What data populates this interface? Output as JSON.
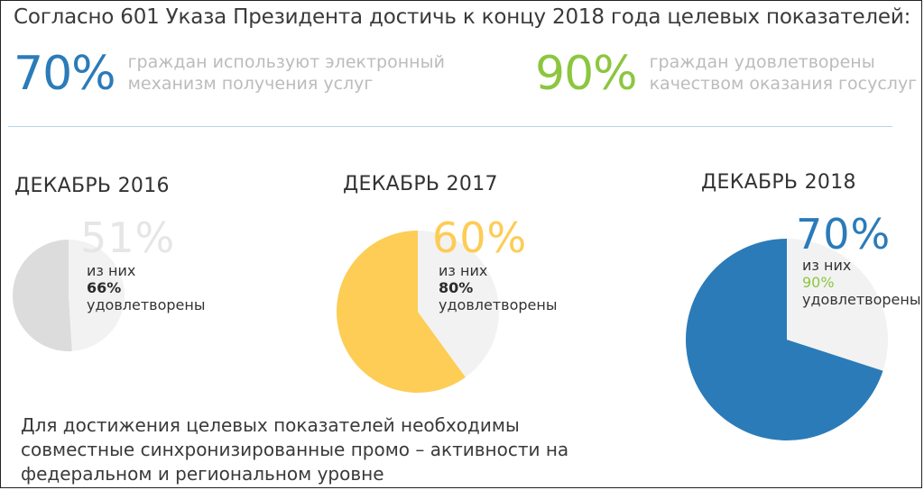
{
  "headline": "Согласно 601 Указа Президента достичь к концу 2018 года целевых показателей:",
  "targets": [
    {
      "value": "70%",
      "line1": "граждан используют электронный",
      "line2": "механизм получения услуг",
      "color": "#2b7bb9"
    },
    {
      "value": "90%",
      "line1": "граждан удовлетворены",
      "line2": "качеством оказания госуслуг",
      "color": "#8cc63f"
    }
  ],
  "periods": [
    {
      "title": "ДЕКАБРЬ 2016",
      "percent": "51%",
      "line1": "из них",
      "satisfied": "66%",
      "line2": "удовлетворены",
      "percent_color": "#e6e6e6",
      "satisfied_color": "#2b2b2b"
    },
    {
      "title": "ДЕКАБРЬ 2017",
      "percent": "60%",
      "line1": "из них",
      "satisfied": "80%",
      "line2": "удовлетворены",
      "percent_color": "#fdcc55",
      "satisfied_color": "#2b2b2b"
    },
    {
      "title": "ДЕКАБРЬ 2018",
      "percent": "70%",
      "line1": "из них",
      "satisfied": "90%",
      "line2": "удовлетворены",
      "percent_color": "#2b7bb9",
      "satisfied_color": "#8cc63f"
    }
  ],
  "footer": {
    "line1": "Для достижения целевых показателей необходимы",
    "line2": "совместные синхронизированные промо – активности на",
    "line3": "федеральном и региональном уровне"
  },
  "chart_data": {
    "type": "pie",
    "title": "",
    "charts": [
      {
        "category": "ДЕКАБРЬ 2016",
        "values": [
          51,
          49
        ],
        "colors": [
          "#dcdcdc",
          "#f2f2f2"
        ]
      },
      {
        "category": "ДЕКАБРЬ 2017",
        "values": [
          60,
          40
        ],
        "colors": [
          "#fdcd56",
          "#f2f2f2"
        ]
      },
      {
        "category": "ДЕКАБРЬ 2018",
        "values": [
          70,
          30
        ],
        "colors": [
          "#2b7bb9",
          "#f2f2f2"
        ]
      }
    ]
  }
}
